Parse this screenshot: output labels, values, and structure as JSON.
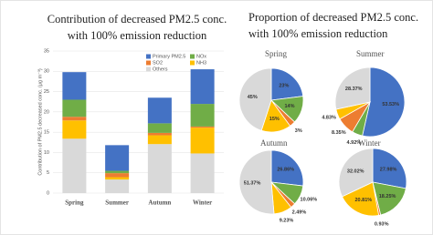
{
  "right_title": [
    "Proportion of decreased PM2.5 conc.",
    "with 100% emission reduction"
  ],
  "chart_data": [
    {
      "type": "stacked_bar",
      "title": [
        "Contribution of decreased PM2.5 conc.",
        "with 100% emission reduction"
      ],
      "ylabel": "Contribution of PM2.5 decreased conc. (μg m⁻³)",
      "categories": [
        "Spring",
        "Summer",
        "Autumn",
        "Winter"
      ],
      "ylim": [
        0,
        35
      ],
      "yticks": [
        0,
        5,
        10,
        15,
        20,
        25,
        30,
        35
      ],
      "series": [
        {
          "name": "Others",
          "color": "#d9d9d9",
          "values": [
            13.4,
            3.35,
            12.07,
            9.77
          ]
        },
        {
          "name": "NH3",
          "color": "#ffc000",
          "values": [
            4.5,
            0.57,
            2.17,
            6.35
          ]
        },
        {
          "name": "SO2",
          "color": "#ed7d31",
          "values": [
            0.9,
            0.99,
            0.59,
            0.28
          ]
        },
        {
          "name": "NOx",
          "color": "#70ad47",
          "values": [
            4.2,
            0.58,
            2.36,
            5.57
          ]
        },
        {
          "name": "Primary PM2.5",
          "color": "#4472c4",
          "values": [
            6.8,
            6.32,
            6.31,
            8.53
          ]
        }
      ]
    },
    {
      "type": "pie",
      "title": "Spring",
      "colors": [
        "#4472c4",
        "#70ad47",
        "#ed7d31",
        "#ffc000",
        "#d9d9d9"
      ],
      "values": [
        23,
        14,
        3,
        15,
        45
      ],
      "value_labels": [
        "23%",
        "14%",
        "3%",
        "15%",
        "45%"
      ]
    },
    {
      "type": "pie",
      "title": "Summer",
      "colors": [
        "#4472c4",
        "#70ad47",
        "#ed7d31",
        "#ffc000",
        "#d9d9d9"
      ],
      "values": [
        53.53,
        4.92,
        8.35,
        4.83,
        28.37
      ],
      "value_labels": [
        "53.53%",
        "4.92%",
        "8.35%",
        "4.83%",
        "28.37%"
      ]
    },
    {
      "type": "pie",
      "title": "Autumn",
      "colors": [
        "#4472c4",
        "#70ad47",
        "#ed7d31",
        "#ffc000",
        "#d9d9d9"
      ],
      "values": [
        26.86,
        10.06,
        2.49,
        9.23,
        51.37
      ],
      "value_labels": [
        "26.86%",
        "10.06%",
        "2.49%",
        "9.23%",
        "51.37%"
      ]
    },
    {
      "type": "pie",
      "title": "Winter",
      "colors": [
        "#4472c4",
        "#70ad47",
        "#ed7d31",
        "#ffc000",
        "#d9d9d9"
      ],
      "values": [
        27.98,
        18.25,
        0.93,
        20.81,
        32.02
      ],
      "value_labels": [
        "27.98%",
        "18.25%",
        "0.93%",
        "20.81%",
        "32.02%"
      ]
    }
  ]
}
